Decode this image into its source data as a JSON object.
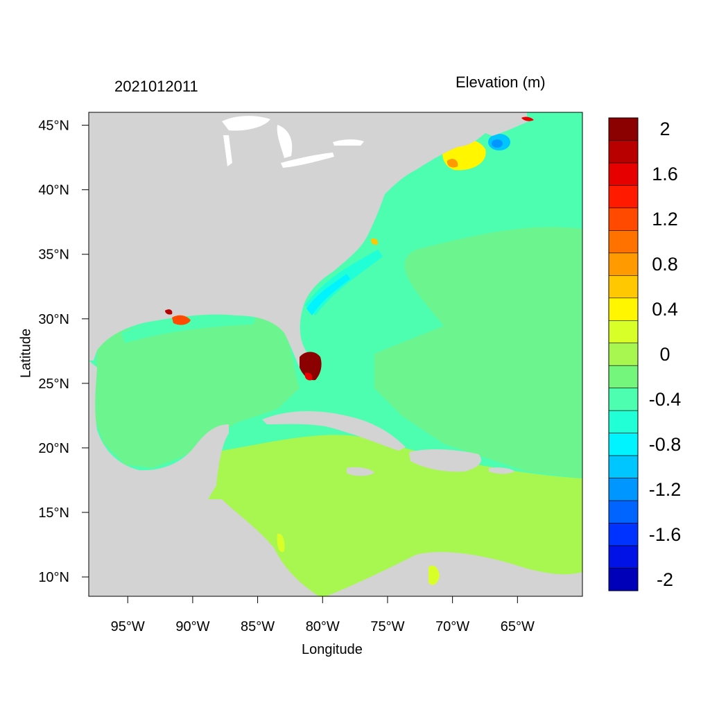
{
  "map": {
    "timestamp": "2021012011",
    "legend_title": "Elevation (m)",
    "x_axis_label": "Longitude",
    "y_axis_label": "Latitude",
    "lon_range": [
      -98,
      -60
    ],
    "lat_range": [
      8.5,
      46
    ],
    "x_ticks": [
      {
        "value": -95,
        "label": "95°W"
      },
      {
        "value": -90,
        "label": "90°W"
      },
      {
        "value": -85,
        "label": "85°W"
      },
      {
        "value": -80,
        "label": "80°W"
      },
      {
        "value": -75,
        "label": "75°W"
      },
      {
        "value": -70,
        "label": "70°W"
      },
      {
        "value": -65,
        "label": "65°W"
      }
    ],
    "y_ticks": [
      {
        "value": 45,
        "label": "45°N"
      },
      {
        "value": 40,
        "label": "40°N"
      },
      {
        "value": 35,
        "label": "35°N"
      },
      {
        "value": 30,
        "label": "30°N"
      },
      {
        "value": 25,
        "label": "25°N"
      },
      {
        "value": 20,
        "label": "20°N"
      },
      {
        "value": 15,
        "label": "15°N"
      },
      {
        "value": 10,
        "label": "10°N"
      }
    ],
    "colors": {
      "land": "#d3d3d3",
      "ocean_minus02": "#6cf58f",
      "ocean_minus04": "#4dfdb0",
      "caribbean": "#a8f650",
      "frame": "#000000"
    }
  },
  "colorbar": {
    "levels_top_to_bottom": [
      {
        "color": "#8b0000"
      },
      {
        "color": "#b80000"
      },
      {
        "color": "#e60000"
      },
      {
        "color": "#ff1a00"
      },
      {
        "color": "#ff4a00"
      },
      {
        "color": "#ff7200"
      },
      {
        "color": "#ff9b00"
      },
      {
        "color": "#ffc800"
      },
      {
        "color": "#fff600"
      },
      {
        "color": "#d9ff29"
      },
      {
        "color": "#a8f650"
      },
      {
        "color": "#74f57c"
      },
      {
        "color": "#4dfdb0"
      },
      {
        "color": "#20ffd6"
      },
      {
        "color": "#00f4ff"
      },
      {
        "color": "#00c6ff"
      },
      {
        "color": "#0096ff"
      },
      {
        "color": "#0064ff"
      },
      {
        "color": "#0033ff"
      },
      {
        "color": "#0012e6"
      },
      {
        "color": "#0000b8"
      }
    ],
    "labels": [
      {
        "text": "2",
        "boundary": 1
      },
      {
        "text": "1.6",
        "boundary": 3
      },
      {
        "text": "1.2",
        "boundary": 5
      },
      {
        "text": "0.8",
        "boundary": 7
      },
      {
        "text": "0.4",
        "boundary": 9
      },
      {
        "text": "0",
        "boundary": 11
      },
      {
        "text": "-0.4",
        "boundary": 13
      },
      {
        "text": "-0.8",
        "boundary": 15
      },
      {
        "text": "-1.2",
        "boundary": 17
      },
      {
        "text": "-1.6",
        "boundary": 19
      },
      {
        "text": "-2",
        "boundary": 21
      }
    ]
  }
}
